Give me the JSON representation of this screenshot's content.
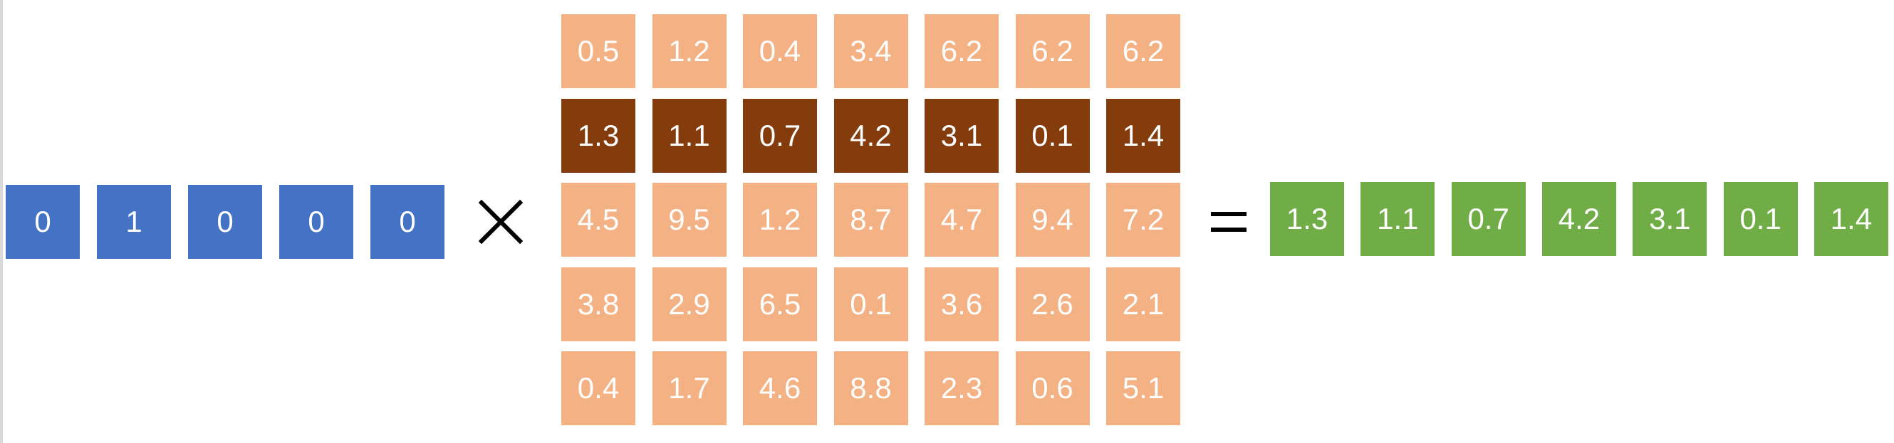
{
  "colors": {
    "one_hot": "#4472c4",
    "matrix": "#f4b183",
    "matrix_selected": "#843c0c",
    "result": "#70ad47",
    "operator": "#000000"
  },
  "one_hot_vector": [
    "0",
    "1",
    "0",
    "0",
    "0"
  ],
  "matrix": {
    "selected_row": 1,
    "rows": [
      [
        "0.5",
        "1.2",
        "0.4",
        "3.4",
        "6.2",
        "6.2",
        "6.2"
      ],
      [
        "1.3",
        "1.1",
        "0.7",
        "4.2",
        "3.1",
        "0.1",
        "1.4"
      ],
      [
        "4.5",
        "9.5",
        "1.2",
        "8.7",
        "4.7",
        "9.4",
        "7.2"
      ],
      [
        "3.8",
        "2.9",
        "6.5",
        "0.1",
        "3.6",
        "2.6",
        "2.1"
      ],
      [
        "0.4",
        "1.7",
        "4.6",
        "8.8",
        "2.3",
        "0.6",
        "5.1"
      ]
    ]
  },
  "operators": {
    "multiply": "multiply-icon",
    "equals": "equals-icon"
  },
  "result_vector": [
    "1.3",
    "1.1",
    "0.7",
    "4.2",
    "3.1",
    "0.1",
    "1.4"
  ]
}
